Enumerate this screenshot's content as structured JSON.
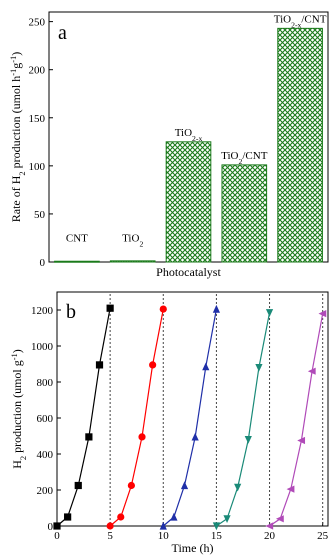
{
  "chart_data": [
    {
      "type": "bar",
      "panel_label": "a",
      "xlabel": "Photocatalyst",
      "ylabel": {
        "main": "Rate of H",
        "sub1": "2",
        "mid": " production (umol h",
        "sup1": "-1",
        "mid2": "g",
        "sup2": "-1",
        "end": ")"
      },
      "ylim": [
        0,
        260
      ],
      "yticks": [
        0,
        50,
        100,
        150,
        200,
        250
      ],
      "categories": [
        {
          "parts": [
            {
              "t": "CNT",
              "s": "n"
            }
          ]
        },
        {
          "parts": [
            {
              "t": "TiO",
              "s": "n"
            },
            {
              "t": "2",
              "s": "sub"
            }
          ]
        },
        {
          "parts": [
            {
              "t": "TiO",
              "s": "n"
            },
            {
              "t": "2-x",
              "s": "sub"
            }
          ]
        },
        {
          "parts": [
            {
              "t": "TiO",
              "s": "n"
            },
            {
              "t": "2",
              "s": "sub"
            },
            {
              "t": "/CNT",
              "s": "n"
            }
          ]
        },
        {
          "parts": [
            {
              "t": "TiO",
              "s": "n"
            },
            {
              "t": "2-x",
              "s": "sub"
            },
            {
              "t": "/CNT",
              "s": "n"
            }
          ]
        }
      ],
      "values": [
        0.8,
        1.2,
        125,
        101,
        243
      ],
      "bar_color": "#1a7a1a",
      "hatch": "green cross-hatch"
    },
    {
      "type": "line",
      "panel_label": "b",
      "xlabel": "Time (h)",
      "ylabel": {
        "main": "H",
        "sub1": "2",
        "mid": " production (umol g",
        "sup1": "-1",
        "end": ")"
      },
      "xlim": [
        0,
        25.5
      ],
      "ylim": [
        0,
        1300
      ],
      "xticks": [
        0,
        5,
        10,
        15,
        20,
        25
      ],
      "yticks": [
        0,
        200,
        400,
        600,
        800,
        1000,
        1200
      ],
      "cycle_boundaries": [
        5,
        10,
        15,
        20,
        25
      ],
      "series": [
        {
          "color": "#000000",
          "marker": "square",
          "x": [
            0,
            1,
            2,
            3,
            4,
            5
          ],
          "y": [
            0,
            50,
            225,
            495,
            895,
            1210
          ]
        },
        {
          "color": "#ff0000",
          "marker": "circle",
          "x": [
            5,
            6,
            7,
            8,
            9,
            10
          ],
          "y": [
            0,
            50,
            225,
            495,
            895,
            1205
          ]
        },
        {
          "color": "#1f2fa8",
          "marker": "triangle-up",
          "x": [
            10,
            11,
            12,
            13,
            14,
            15
          ],
          "y": [
            0,
            50,
            225,
            495,
            885,
            1205
          ]
        },
        {
          "color": "#1a8a78",
          "marker": "triangle-down",
          "x": [
            15,
            16,
            17,
            18,
            19,
            20
          ],
          "y": [
            0,
            40,
            215,
            480,
            880,
            1185
          ]
        },
        {
          "color": "#b04ab8",
          "marker": "triangle-left",
          "x": [
            20,
            21,
            22,
            23,
            24,
            25
          ],
          "y": [
            0,
            40,
            205,
            475,
            860,
            1180
          ]
        }
      ]
    }
  ]
}
